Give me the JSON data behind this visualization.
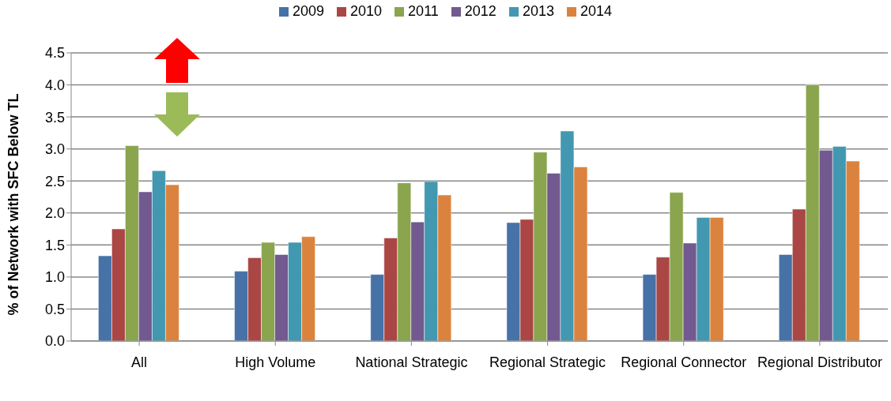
{
  "chart_data": {
    "type": "bar",
    "ylabel": "% of Network with SFC Below TL",
    "categories": [
      "All",
      "High Volume",
      "National Strategic",
      "Regional Strategic",
      "Regional Connector",
      "Regional Distributor"
    ],
    "series": [
      {
        "name": "2009",
        "color": "#4672a8",
        "values": [
          1.33,
          1.09,
          1.04,
          1.85,
          1.04,
          1.35
        ]
      },
      {
        "name": "2010",
        "color": "#aa4644",
        "values": [
          1.75,
          1.3,
          1.61,
          1.9,
          1.31,
          2.06
        ]
      },
      {
        "name": "2011",
        "color": "#8aa54e",
        "values": [
          3.05,
          1.54,
          2.47,
          2.95,
          2.32,
          4.0
        ]
      },
      {
        "name": "2012",
        "color": "#72598f",
        "values": [
          2.33,
          1.35,
          1.86,
          2.62,
          1.53,
          2.98
        ]
      },
      {
        "name": "2013",
        "color": "#4298b0",
        "values": [
          2.66,
          1.54,
          2.49,
          3.28,
          1.93,
          3.04
        ]
      },
      {
        "name": "2014",
        "color": "#db833e",
        "values": [
          2.44,
          1.63,
          2.28,
          2.72,
          1.93,
          2.81
        ]
      }
    ],
    "ylim": [
      0,
      4.5
    ],
    "yticks": [
      {
        "value": 0,
        "label": "0.0"
      },
      {
        "value": 0.5,
        "label": "0.5"
      },
      {
        "value": 1,
        "label": "1.0"
      },
      {
        "value": 1.5,
        "label": "1.5"
      },
      {
        "value": 2,
        "label": "2.0"
      },
      {
        "value": 2.5,
        "label": "2.5"
      },
      {
        "value": 3,
        "label": "3.0"
      },
      {
        "value": 3.5,
        "label": "3.5"
      },
      {
        "value": 4,
        "label": "4.0"
      },
      {
        "value": 4.5,
        "label": "4.5"
      }
    ],
    "grid": "y",
    "legend": "top"
  }
}
